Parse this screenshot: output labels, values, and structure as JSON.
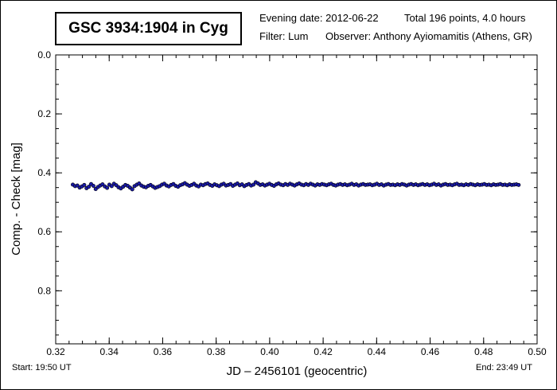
{
  "header": {
    "title": "GSC 3934:1904 in Cyg",
    "evening_date": "Evening date: 2012-06-22",
    "total": "Total 196 points, 4.0 hours",
    "filter": "Filter: Lum",
    "observer": "Observer: Anthony Ayiomamitis (Athens, GR)"
  },
  "footer": {
    "start": "Start: 19:50 UT",
    "end": "End: 23:49 UT"
  },
  "colors": {
    "marker_fill": "#1a1aa8",
    "marker_stroke": "#000000",
    "frame": "#000000"
  },
  "chart_data": {
    "type": "scatter",
    "title": "GSC 3934:1904 in Cyg",
    "xlabel": "JD – 2456101  (geocentric)",
    "ylabel": "Comp. - Check [mag]",
    "xlim": [
      0.32,
      0.5
    ],
    "ylim": [
      0.0,
      0.98
    ],
    "y_inverted": true,
    "grid": false,
    "xticks": [
      "0.32",
      "0.34",
      "0.36",
      "0.38",
      "0.40",
      "0.42",
      "0.44",
      "0.46",
      "0.48",
      "0.50"
    ],
    "yticks": [
      "0.0",
      "0.2",
      "0.4",
      "0.6",
      "0.8"
    ],
    "series": [
      {
        "n_points": 196,
        "x_start": 0.3264,
        "x_end": 0.4931,
        "y": [
          0.44,
          0.445,
          0.443,
          0.45,
          0.446,
          0.441,
          0.452,
          0.447,
          0.438,
          0.444,
          0.455,
          0.448,
          0.443,
          0.439,
          0.446,
          0.451,
          0.44,
          0.445,
          0.437,
          0.442,
          0.449,
          0.453,
          0.447,
          0.441,
          0.444,
          0.45,
          0.456,
          0.445,
          0.44,
          0.436,
          0.443,
          0.447,
          0.449,
          0.444,
          0.441,
          0.446,
          0.451,
          0.448,
          0.445,
          0.44,
          0.437,
          0.443,
          0.446,
          0.441,
          0.438,
          0.444,
          0.447,
          0.442,
          0.439,
          0.435,
          0.44,
          0.444,
          0.441,
          0.437,
          0.443,
          0.446,
          0.44,
          0.442,
          0.438,
          0.436,
          0.441,
          0.444,
          0.439,
          0.442,
          0.445,
          0.44,
          0.437,
          0.443,
          0.441,
          0.438,
          0.444,
          0.44,
          0.436,
          0.442,
          0.439,
          0.445,
          0.441,
          0.438,
          0.443,
          0.44,
          0.432,
          0.436,
          0.441,
          0.439,
          0.443,
          0.44,
          0.437,
          0.441,
          0.444,
          0.439,
          0.436,
          0.44,
          0.442,
          0.438,
          0.441,
          0.437,
          0.44,
          0.443,
          0.439,
          0.436,
          0.44,
          0.442,
          0.438,
          0.441,
          0.437,
          0.44,
          0.443,
          0.439,
          0.441,
          0.438,
          0.44,
          0.442,
          0.439,
          0.437,
          0.441,
          0.443,
          0.44,
          0.438,
          0.441,
          0.439,
          0.442,
          0.44,
          0.437,
          0.441,
          0.439,
          0.443,
          0.44,
          0.438,
          0.441,
          0.44,
          0.439,
          0.442,
          0.44,
          0.437,
          0.441,
          0.439,
          0.443,
          0.44,
          0.438,
          0.441,
          0.44,
          0.442,
          0.439,
          0.441,
          0.438,
          0.44,
          0.443,
          0.44,
          0.438,
          0.441,
          0.439,
          0.442,
          0.44,
          0.438,
          0.441,
          0.439,
          0.442,
          0.44,
          0.437,
          0.441,
          0.439,
          0.443,
          0.44,
          0.438,
          0.441,
          0.44,
          0.442,
          0.439,
          0.437,
          0.441,
          0.44,
          0.442,
          0.439,
          0.441,
          0.438,
          0.44,
          0.442,
          0.439,
          0.441,
          0.44,
          0.438,
          0.441,
          0.44,
          0.442,
          0.439,
          0.441,
          0.44,
          0.438,
          0.441,
          0.44,
          0.442,
          0.439,
          0.441,
          0.44,
          0.439,
          0.441
        ]
      }
    ]
  }
}
